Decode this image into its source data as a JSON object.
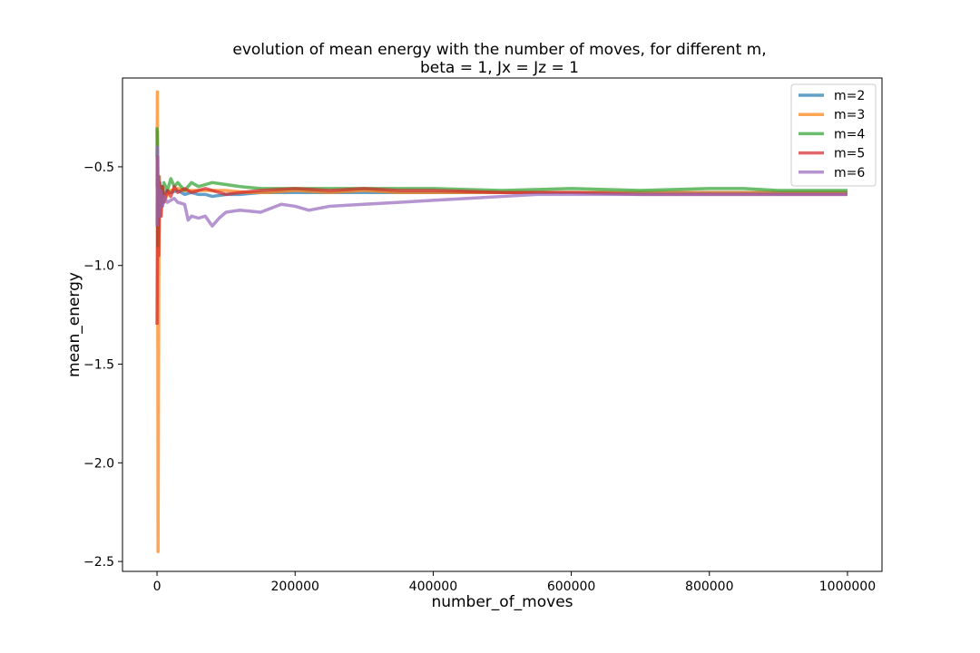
{
  "chart_data": {
    "type": "line",
    "title": "evolution of mean energy with the number of moves, for different m,",
    "subtitle": "beta = 1, Jx = Jz = 1",
    "xlabel": "number_of_moves",
    "ylabel": "mean_energy",
    "xlim": [
      -50000,
      1050000
    ],
    "ylim": [
      -2.55,
      -0.05
    ],
    "xticks": [
      0,
      200000,
      400000,
      600000,
      800000,
      1000000
    ],
    "xtick_labels": [
      "0",
      "200000",
      "400000",
      "600000",
      "800000",
      "1000000"
    ],
    "yticks": [
      -2.5,
      -2.0,
      -1.5,
      -1.0,
      -0.5
    ],
    "ytick_labels": [
      "−2.5",
      "−2.0",
      "−1.5",
      "−1.0",
      "−0.5"
    ],
    "grid": false,
    "legend_position": "top-right",
    "series": [
      {
        "name": "m=2",
        "color": "#1f77b4",
        "x": [
          0,
          500,
          1000,
          2000,
          3000,
          5000,
          7000,
          10000,
          15000,
          20000,
          30000,
          40000,
          50000,
          60000,
          70000,
          80000,
          100000,
          120000,
          150000,
          200000,
          250000,
          300000,
          350000,
          400000,
          500000,
          600000,
          700000,
          800000,
          900000,
          1000000
        ],
        "y": [
          -0.45,
          -0.32,
          -0.6,
          -0.78,
          -0.55,
          -0.68,
          -0.6,
          -0.64,
          -0.62,
          -0.63,
          -0.62,
          -0.64,
          -0.63,
          -0.64,
          -0.64,
          -0.65,
          -0.64,
          -0.64,
          -0.63,
          -0.63,
          -0.63,
          -0.63,
          -0.63,
          -0.63,
          -0.63,
          -0.63,
          -0.63,
          -0.63,
          -0.63,
          -0.63
        ]
      },
      {
        "name": "m=3",
        "color": "#ff7f0e",
        "x": [
          0,
          500,
          1000,
          1500,
          2500,
          3500,
          5000,
          7000,
          10000,
          15000,
          20000,
          30000,
          40000,
          50000,
          60000,
          80000,
          100000,
          130000,
          160000,
          200000,
          250000,
          300000,
          350000,
          400000,
          500000,
          600000,
          700000,
          800000,
          900000,
          1000000
        ],
        "y": [
          -0.6,
          -0.12,
          -0.9,
          -2.45,
          -1.1,
          -0.55,
          -0.75,
          -0.62,
          -0.68,
          -0.64,
          -0.62,
          -0.61,
          -0.62,
          -0.62,
          -0.62,
          -0.62,
          -0.62,
          -0.63,
          -0.63,
          -0.62,
          -0.63,
          -0.62,
          -0.63,
          -0.63,
          -0.63,
          -0.63,
          -0.63,
          -0.63,
          -0.63,
          -0.63
        ]
      },
      {
        "name": "m=4",
        "color": "#2ca02c",
        "x": [
          0,
          500,
          1000,
          2000,
          3000,
          5000,
          7000,
          10000,
          15000,
          20000,
          25000,
          30000,
          40000,
          50000,
          60000,
          70000,
          80000,
          100000,
          120000,
          150000,
          200000,
          250000,
          300000,
          350000,
          400000,
          500000,
          600000,
          700000,
          800000,
          850000,
          900000,
          1000000
        ],
        "y": [
          -0.3,
          -0.5,
          -0.9,
          -0.55,
          -0.75,
          -0.6,
          -0.7,
          -0.58,
          -0.62,
          -0.56,
          -0.6,
          -0.58,
          -0.62,
          -0.58,
          -0.6,
          -0.59,
          -0.58,
          -0.59,
          -0.6,
          -0.61,
          -0.61,
          -0.61,
          -0.61,
          -0.61,
          -0.61,
          -0.62,
          -0.61,
          -0.62,
          -0.61,
          -0.61,
          -0.62,
          -0.62
        ]
      },
      {
        "name": "m=5",
        "color": "#d62728",
        "x": [
          0,
          500,
          1000,
          1500,
          2500,
          4000,
          6000,
          8000,
          10000,
          15000,
          20000,
          25000,
          30000,
          40000,
          50000,
          60000,
          70000,
          80000,
          90000,
          100000,
          120000,
          150000,
          200000,
          250000,
          300000,
          350000,
          400000,
          500000,
          600000,
          700000,
          800000,
          900000,
          1000000
        ],
        "y": [
          -1.3,
          -0.85,
          -0.45,
          -0.7,
          -0.95,
          -0.58,
          -0.75,
          -0.6,
          -0.68,
          -0.62,
          -0.65,
          -0.6,
          -0.63,
          -0.61,
          -0.63,
          -0.62,
          -0.61,
          -0.62,
          -0.63,
          -0.64,
          -0.63,
          -0.62,
          -0.61,
          -0.62,
          -0.61,
          -0.62,
          -0.62,
          -0.63,
          -0.63,
          -0.64,
          -0.64,
          -0.64,
          -0.64
        ]
      },
      {
        "name": "m=6",
        "color": "#9467bd",
        "x": [
          0,
          500,
          1000,
          2000,
          3000,
          5000,
          8000,
          10000,
          15000,
          20000,
          25000,
          30000,
          40000,
          45000,
          50000,
          60000,
          70000,
          80000,
          90000,
          100000,
          120000,
          150000,
          180000,
          200000,
          220000,
          250000,
          300000,
          350000,
          400000,
          450000,
          500000,
          550000,
          600000,
          700000,
          800000,
          900000,
          1000000
        ],
        "y": [
          -0.8,
          -0.4,
          -0.65,
          -0.55,
          -0.75,
          -0.62,
          -0.7,
          -0.65,
          -0.68,
          -0.67,
          -0.66,
          -0.68,
          -0.69,
          -0.77,
          -0.75,
          -0.76,
          -0.75,
          -0.8,
          -0.76,
          -0.73,
          -0.72,
          -0.73,
          -0.69,
          -0.7,
          -0.72,
          -0.7,
          -0.69,
          -0.68,
          -0.67,
          -0.66,
          -0.65,
          -0.64,
          -0.64,
          -0.64,
          -0.64,
          -0.64,
          -0.64
        ]
      }
    ]
  }
}
